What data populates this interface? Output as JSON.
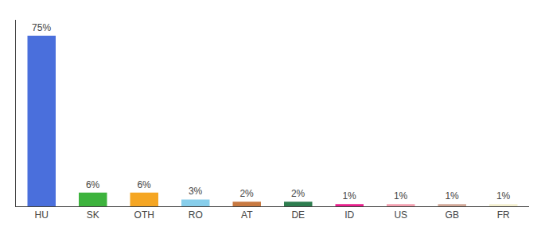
{
  "chart_data": {
    "type": "bar",
    "categories": [
      "HU",
      "SK",
      "OTH",
      "RO",
      "AT",
      "DE",
      "ID",
      "US",
      "GB",
      "FR"
    ],
    "values": [
      75,
      6,
      6,
      3,
      2,
      2,
      1,
      1,
      1,
      1
    ],
    "value_labels": [
      "75%",
      "6%",
      "6%",
      "3%",
      "2%",
      "2%",
      "1%",
      "1%",
      "1%",
      "1%"
    ],
    "colors": [
      "#4a6fdc",
      "#3db33d",
      "#f5a623",
      "#87ceeb",
      "#c87941",
      "#2e7d4f",
      "#e91e8c",
      "#f4a0b0",
      "#d2a898",
      "#f5f0d0"
    ],
    "ylim": [
      0,
      82
    ],
    "data_labels": true,
    "tick_labels": "x",
    "grid": false
  }
}
